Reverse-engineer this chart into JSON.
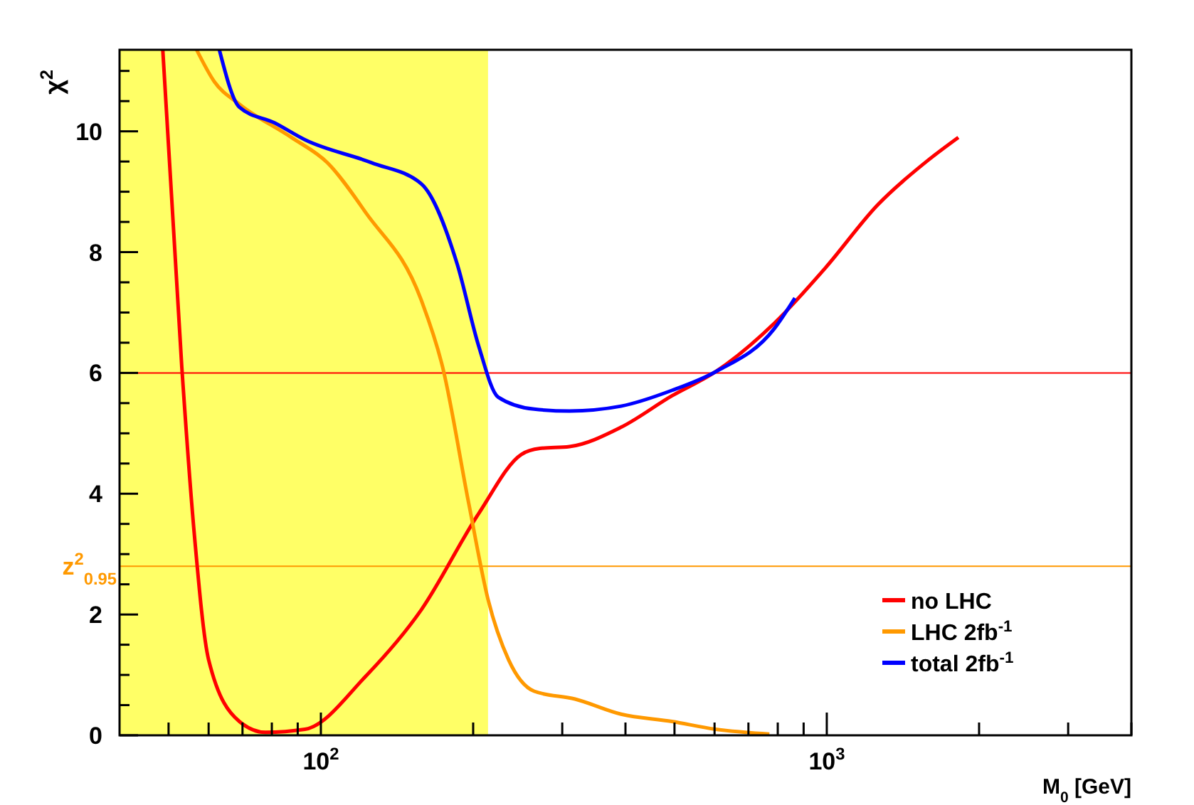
{
  "chart_data": {
    "type": "line",
    "xlabel": "M$_{0}$ [GeV]",
    "ylabel": "χ$^{2}$",
    "log": "x",
    "grid": false,
    "legend": "bottom right",
    "marker": "none",
    "line_style": "solid",
    "xlim": [
      40,
      4000
    ],
    "ylim": [
      0,
      11.35
    ],
    "xticks": [
      {
        "value": 50,
        "label": null
      },
      {
        "value": 60,
        "label": null
      },
      {
        "value": 70,
        "label": null
      },
      {
        "value": 80,
        "label": null
      },
      {
        "value": 90,
        "label": null
      },
      {
        "value": 100,
        "label": "10$^{2}$"
      },
      {
        "value": 200,
        "label": null
      },
      {
        "value": 300,
        "label": null
      },
      {
        "value": 400,
        "label": null
      },
      {
        "value": 500,
        "label": null
      },
      {
        "value": 600,
        "label": null
      },
      {
        "value": 700,
        "label": null
      },
      {
        "value": 800,
        "label": null
      },
      {
        "value": 900,
        "label": null
      },
      {
        "value": 1000,
        "label": "10$^{3}$"
      },
      {
        "value": 2000,
        "label": null
      },
      {
        "value": 3000,
        "label": null
      },
      {
        "value": 4000,
        "label": null
      }
    ],
    "yticks": [
      0,
      {
        "value": 0.5,
        "label": null
      },
      {
        "value": 1,
        "label": null
      },
      {
        "value": 1.5,
        "label": null
      },
      2,
      {
        "value": 2.5,
        "label": null
      },
      {
        "value": 3,
        "label": null
      },
      {
        "value": 3.5,
        "label": null
      },
      4,
      {
        "value": 4.5,
        "label": null
      },
      {
        "value": 5,
        "label": null
      },
      {
        "value": 5.5,
        "label": null
      },
      6,
      {
        "value": 6.5,
        "label": null
      },
      {
        "value": 7,
        "label": null
      },
      {
        "value": 7.5,
        "label": null
      },
      8,
      {
        "value": 8.5,
        "label": null
      },
      {
        "value": 9,
        "label": null
      },
      {
        "value": 9.5,
        "label": null
      },
      10,
      {
        "value": 10.5,
        "label": null
      },
      {
        "value": 11,
        "label": null
      }
    ],
    "bands": [
      {
        "axis": "x",
        "from": 40,
        "to": 214,
        "color": "#ffff66"
      }
    ],
    "ref_lines": [
      {
        "axis": "y",
        "value": 6,
        "color": "#ff0000"
      },
      {
        "axis": "y",
        "value": 2.8,
        "label": "z$^{2}$$_{0.95}$",
        "color": "#ff9900"
      }
    ],
    "series": [
      {
        "name": "no LHC",
        "color": "#ff0000",
        "x": [
          48.7,
          53.1,
          56.2,
          60,
          69,
          77.7,
          93,
          123,
          158,
          205,
          249,
          271,
          310,
          392,
          494,
          603,
          787,
          994,
          1260,
          1590,
          1820
        ],
        "values": [
          11.35,
          6.1,
          3.34,
          1.25,
          0.23,
          0.05,
          0.1,
          0.99,
          2.08,
          3.67,
          4.65,
          4.75,
          4.78,
          5.1,
          5.62,
          6.02,
          6.82,
          7.74,
          8.78,
          9.53,
          9.9
        ]
      },
      {
        "name": "LHC 2fb$^{-1}$",
        "color": "#ff9900",
        "x": [
          56.8,
          61.6,
          69,
          87.4,
          103,
          123,
          158,
          174,
          196,
          214,
          235,
          264,
          318,
          392,
          494,
          603,
          770
        ],
        "values": [
          11.35,
          10.82,
          10.45,
          9.9,
          9.48,
          8.64,
          7.2,
          6.1,
          3.84,
          2.25,
          1.25,
          0.73,
          0.6,
          0.35,
          0.23,
          0.1,
          0.02
        ]
      },
      {
        "name": "total 2fb$^{-1}$",
        "color": "#0000ff",
        "x": [
          63,
          69,
          81,
          93,
          126,
          158,
          186,
          205,
          224,
          264,
          310,
          392,
          494,
          603,
          787,
          865
        ],
        "values": [
          11.35,
          10.4,
          10.14,
          9.86,
          9.48,
          9.13,
          7.8,
          6.45,
          5.6,
          5.4,
          5.37,
          5.45,
          5.71,
          6.02,
          6.73,
          7.24
        ]
      }
    ]
  }
}
